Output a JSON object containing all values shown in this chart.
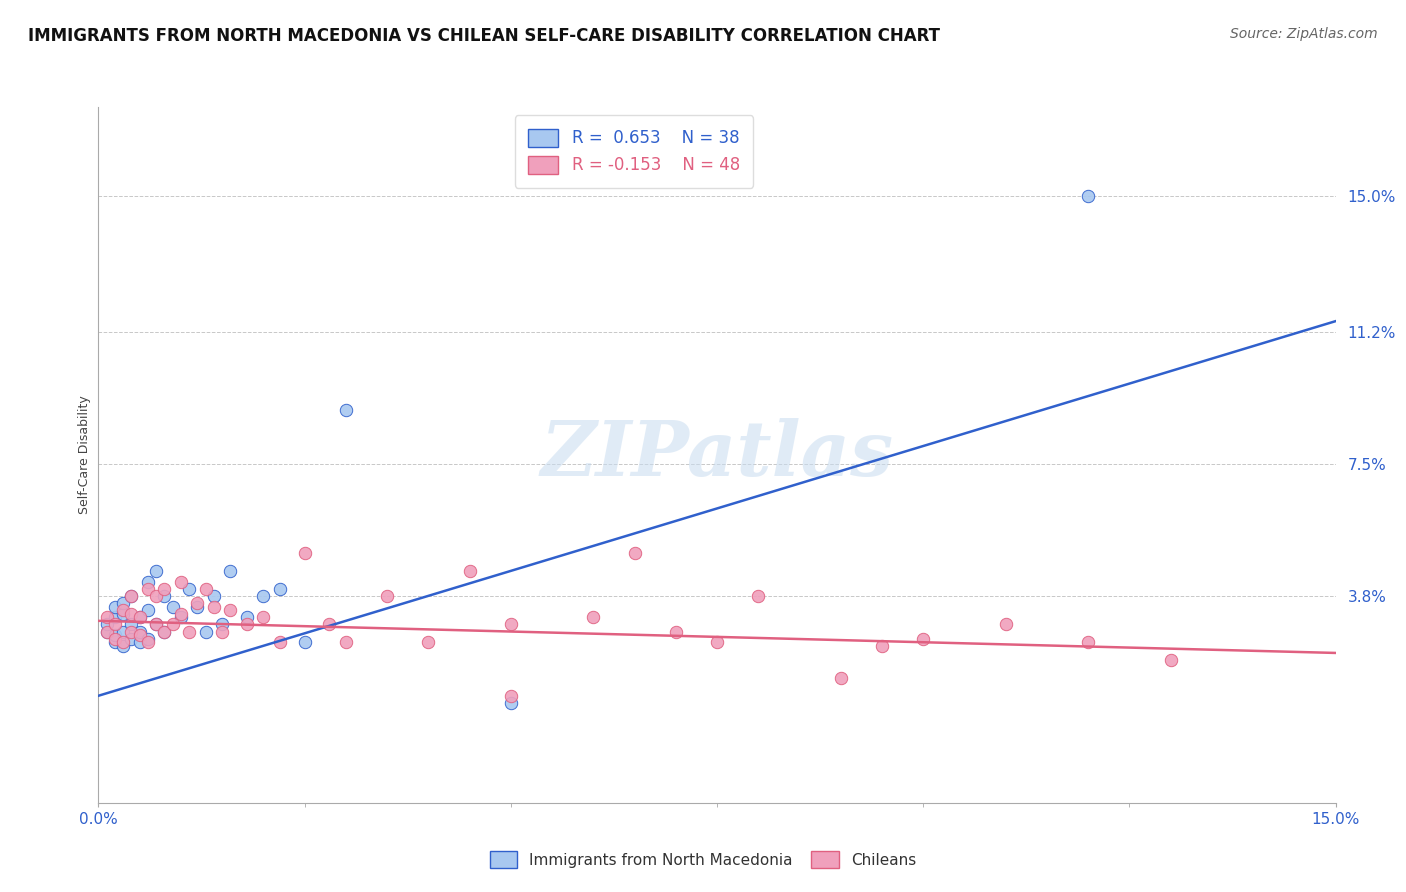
{
  "title": "IMMIGRANTS FROM NORTH MACEDONIA VS CHILEAN SELF-CARE DISABILITY CORRELATION CHART",
  "source": "Source: ZipAtlas.com",
  "ylabel": "Self-Care Disability",
  "xlim": [
    0.0,
    0.15
  ],
  "ylim": [
    -0.02,
    0.175
  ],
  "ytick_positions": [
    0.038,
    0.075,
    0.112,
    0.15
  ],
  "ytick_labels": [
    "3.8%",
    "7.5%",
    "11.2%",
    "15.0%"
  ],
  "blue_r": "0.653",
  "blue_n": "38",
  "pink_r": "-0.153",
  "pink_n": "48",
  "blue_color": "#A8C8F0",
  "pink_color": "#F0A0BC",
  "blue_line_color": "#3060CC",
  "pink_line_color": "#E06080",
  "watermark": "ZIPatlas",
  "blue_points_x": [
    0.001,
    0.001,
    0.002,
    0.002,
    0.002,
    0.002,
    0.003,
    0.003,
    0.003,
    0.003,
    0.004,
    0.004,
    0.004,
    0.005,
    0.005,
    0.005,
    0.006,
    0.006,
    0.006,
    0.007,
    0.007,
    0.008,
    0.008,
    0.009,
    0.01,
    0.011,
    0.012,
    0.013,
    0.014,
    0.015,
    0.016,
    0.018,
    0.02,
    0.022,
    0.025,
    0.03,
    0.12,
    0.05
  ],
  "blue_points_y": [
    0.028,
    0.03,
    0.025,
    0.027,
    0.032,
    0.035,
    0.024,
    0.028,
    0.033,
    0.036,
    0.026,
    0.03,
    0.038,
    0.025,
    0.028,
    0.032,
    0.026,
    0.034,
    0.042,
    0.03,
    0.045,
    0.028,
    0.038,
    0.035,
    0.032,
    0.04,
    0.035,
    0.028,
    0.038,
    0.03,
    0.045,
    0.032,
    0.038,
    0.04,
    0.025,
    0.09,
    0.15,
    0.008
  ],
  "pink_points_x": [
    0.001,
    0.001,
    0.002,
    0.002,
    0.003,
    0.003,
    0.004,
    0.004,
    0.004,
    0.005,
    0.005,
    0.006,
    0.006,
    0.007,
    0.007,
    0.008,
    0.008,
    0.009,
    0.01,
    0.01,
    0.011,
    0.012,
    0.013,
    0.014,
    0.015,
    0.016,
    0.018,
    0.02,
    0.022,
    0.025,
    0.028,
    0.03,
    0.035,
    0.04,
    0.045,
    0.05,
    0.06,
    0.065,
    0.07,
    0.08,
    0.09,
    0.095,
    0.1,
    0.11,
    0.12,
    0.05,
    0.075,
    0.13
  ],
  "pink_points_y": [
    0.028,
    0.032,
    0.026,
    0.03,
    0.025,
    0.034,
    0.028,
    0.033,
    0.038,
    0.027,
    0.032,
    0.025,
    0.04,
    0.03,
    0.038,
    0.028,
    0.04,
    0.03,
    0.033,
    0.042,
    0.028,
    0.036,
    0.04,
    0.035,
    0.028,
    0.034,
    0.03,
    0.032,
    0.025,
    0.05,
    0.03,
    0.025,
    0.038,
    0.025,
    0.045,
    0.03,
    0.032,
    0.05,
    0.028,
    0.038,
    0.015,
    0.024,
    0.026,
    0.03,
    0.025,
    0.01,
    0.025,
    0.02
  ],
  "blue_line_x": [
    0.0,
    0.15
  ],
  "blue_line_y": [
    0.01,
    0.115
  ],
  "pink_line_x": [
    0.0,
    0.15
  ],
  "pink_line_y": [
    0.031,
    0.022
  ],
  "grid_color": "#C8C8C8",
  "background_color": "#FFFFFF",
  "title_fontsize": 12,
  "axis_label_fontsize": 9,
  "tick_fontsize": 11,
  "legend_fontsize": 12,
  "marker_size": 80
}
